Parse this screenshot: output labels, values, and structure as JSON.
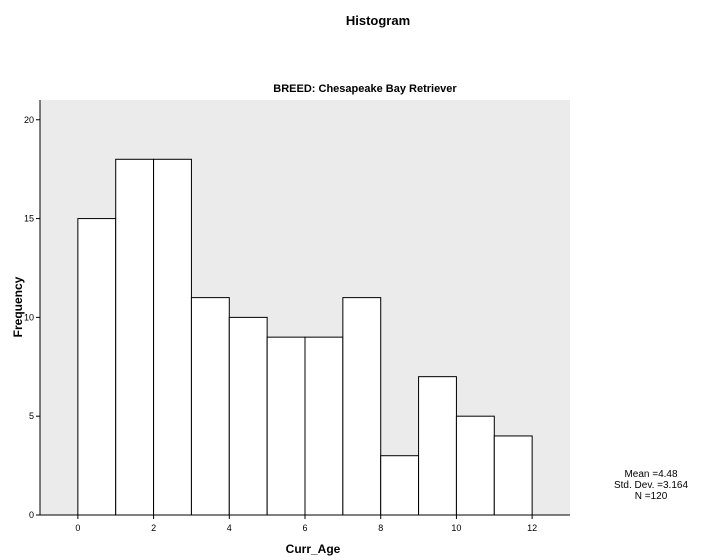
{
  "chart_data": {
    "type": "bar",
    "title": "Histogram",
    "subtitle": "BREED: Chesapeake Bay Retriever",
    "xlabel": "Curr_Age",
    "ylabel": "Frequency",
    "xlim": [
      -1,
      13
    ],
    "ylim": [
      0,
      21
    ],
    "x_ticks": [
      0,
      2,
      4,
      6,
      8,
      10,
      12
    ],
    "y_ticks": [
      0,
      5,
      10,
      15,
      20
    ],
    "bins": [
      {
        "start": 0,
        "end": 1,
        "count": 15
      },
      {
        "start": 1,
        "end": 2,
        "count": 18
      },
      {
        "start": 2,
        "end": 3,
        "count": 18
      },
      {
        "start": 3,
        "end": 4,
        "count": 11
      },
      {
        "start": 4,
        "end": 5,
        "count": 10
      },
      {
        "start": 5,
        "end": 6,
        "count": 9
      },
      {
        "start": 6,
        "end": 7,
        "count": 9
      },
      {
        "start": 7,
        "end": 8,
        "count": 11
      },
      {
        "start": 8,
        "end": 9,
        "count": 3
      },
      {
        "start": 9,
        "end": 10,
        "count": 7
      },
      {
        "start": 10,
        "end": 11,
        "count": 5
      },
      {
        "start": 11,
        "end": 12,
        "count": 4
      }
    ],
    "grid": false,
    "stats": {
      "mean": "Mean =4.48",
      "std_dev": "Std. Dev. =3.164",
      "n": "N =120"
    },
    "colors": {
      "plot_background": "#ebebeb",
      "bar_fill": "#ffffff",
      "bar_stroke": "#000000"
    }
  }
}
